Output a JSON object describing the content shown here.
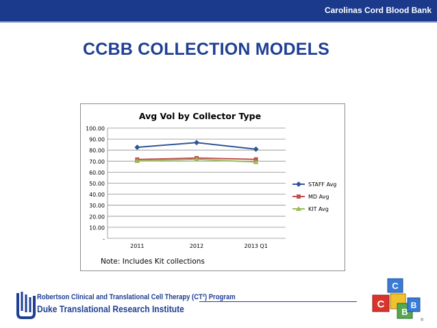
{
  "header": {
    "org_name": "Carolinas Cord Blood Bank",
    "bar_color": "#1b3a8c"
  },
  "slide": {
    "title": "CCBB COLLECTION MODELS",
    "title_color": "#1f3f94"
  },
  "note": "Note: Includes Kit collections",
  "footer": {
    "logo_line1": "Robertson Clinical and Translational Cell Therapy (CT²) Program",
    "logo_line2": "Duke Translational Research Institute",
    "brand_letters": [
      "C",
      "C",
      "B",
      "B"
    ],
    "registered_mark": "®"
  },
  "chart_data": {
    "type": "line",
    "title": "Avg Vol by Collector Type",
    "categories": [
      "2011",
      "2012",
      "2013 Q1"
    ],
    "y_tick_labels": [
      "-",
      "10.00",
      "20.00",
      "30.00",
      "40.00",
      "50.00",
      "60.00",
      "70.00",
      "80.00",
      "90.00",
      "100.00"
    ],
    "ylim": [
      0,
      100
    ],
    "grid": true,
    "legend_position": "right",
    "series": [
      {
        "name": "STAFF Avg",
        "values": [
          82.5,
          86.8,
          80.8
        ],
        "color": "#2f5597",
        "marker": "diamond"
      },
      {
        "name": "MD Avg",
        "values": [
          71.5,
          72.8,
          71.6
        ],
        "color": "#c0504d",
        "marker": "square"
      },
      {
        "name": "KIT Avg",
        "values": [
          70.2,
          71.6,
          69.2
        ],
        "color": "#9bbb59",
        "marker": "triangle"
      }
    ]
  }
}
